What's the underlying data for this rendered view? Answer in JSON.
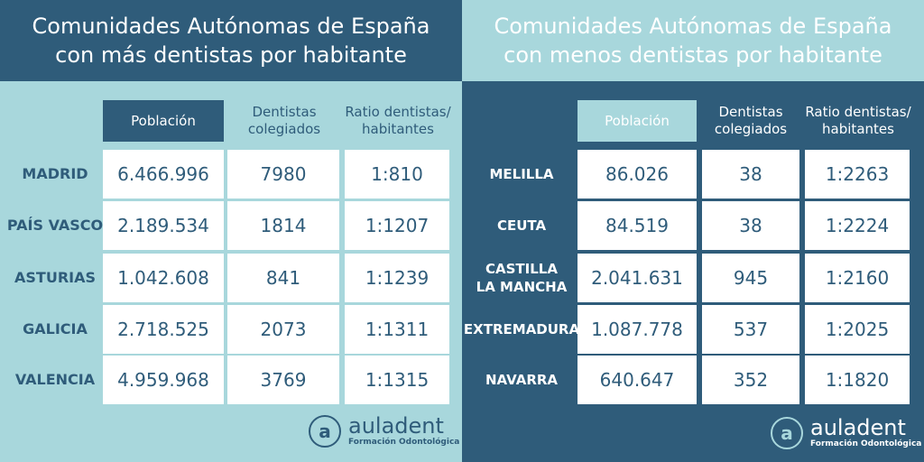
{
  "left": {
    "title_line1": "Comunidades Autónomas de España",
    "title_line2": "con más dentistas por habitante",
    "headers": {
      "poblacion": "Población",
      "dentistas_l1": "Dentistas",
      "dentistas_l2": "colegiados",
      "ratio_l1": "Ratio dentistas/",
      "ratio_l2": "habitantes"
    },
    "rows": [
      {
        "name": "MADRID",
        "poblacion": "6.466.996",
        "dentistas": "7980",
        "ratio": "1:810"
      },
      {
        "name": "PAÍS VASCO",
        "poblacion": "2.189.534",
        "dentistas": "1814",
        "ratio": "1:1207"
      },
      {
        "name": "ASTURIAS",
        "poblacion": "1.042.608",
        "dentistas": "841",
        "ratio": "1:1239"
      },
      {
        "name": "GALICIA",
        "poblacion": "2.718.525",
        "dentistas": "2073",
        "ratio": "1:1311"
      },
      {
        "name": "VALENCIA",
        "poblacion": "4.959.968",
        "dentistas": "3769",
        "ratio": "1:1315"
      }
    ],
    "logo": {
      "brand": "auladent",
      "tagline": "Formación Odontológica",
      "mark": "a"
    }
  },
  "right": {
    "title_line1": "Comunidades Autónomas de España",
    "title_line2": "con menos dentistas por habitante",
    "headers": {
      "poblacion": "Población",
      "dentistas_l1": "Dentistas",
      "dentistas_l2": "colegiados",
      "ratio_l1": "Ratio dentistas/",
      "ratio_l2": "habitantes"
    },
    "rows": [
      {
        "name_l1": "MELILLA",
        "name_l2": "",
        "poblacion": "86.026",
        "dentistas": "38",
        "ratio": "1:2263"
      },
      {
        "name_l1": "CEUTA",
        "name_l2": "",
        "poblacion": "84.519",
        "dentistas": "38",
        "ratio": "1:2224"
      },
      {
        "name_l1": "CASTILLA",
        "name_l2": "LA MANCHA",
        "poblacion": "2.041.631",
        "dentistas": "945",
        "ratio": "1:2160"
      },
      {
        "name_l1": "EXTREMADURA",
        "name_l2": "",
        "poblacion": "1.087.778",
        "dentistas": "537",
        "ratio": "1:2025"
      },
      {
        "name_l1": "NAVARRA",
        "name_l2": "",
        "poblacion": "640.647",
        "dentistas": "352",
        "ratio": "1:1820"
      }
    ],
    "logo": {
      "brand": "auladent",
      "tagline": "Formación Odontológica",
      "mark": "a"
    }
  }
}
